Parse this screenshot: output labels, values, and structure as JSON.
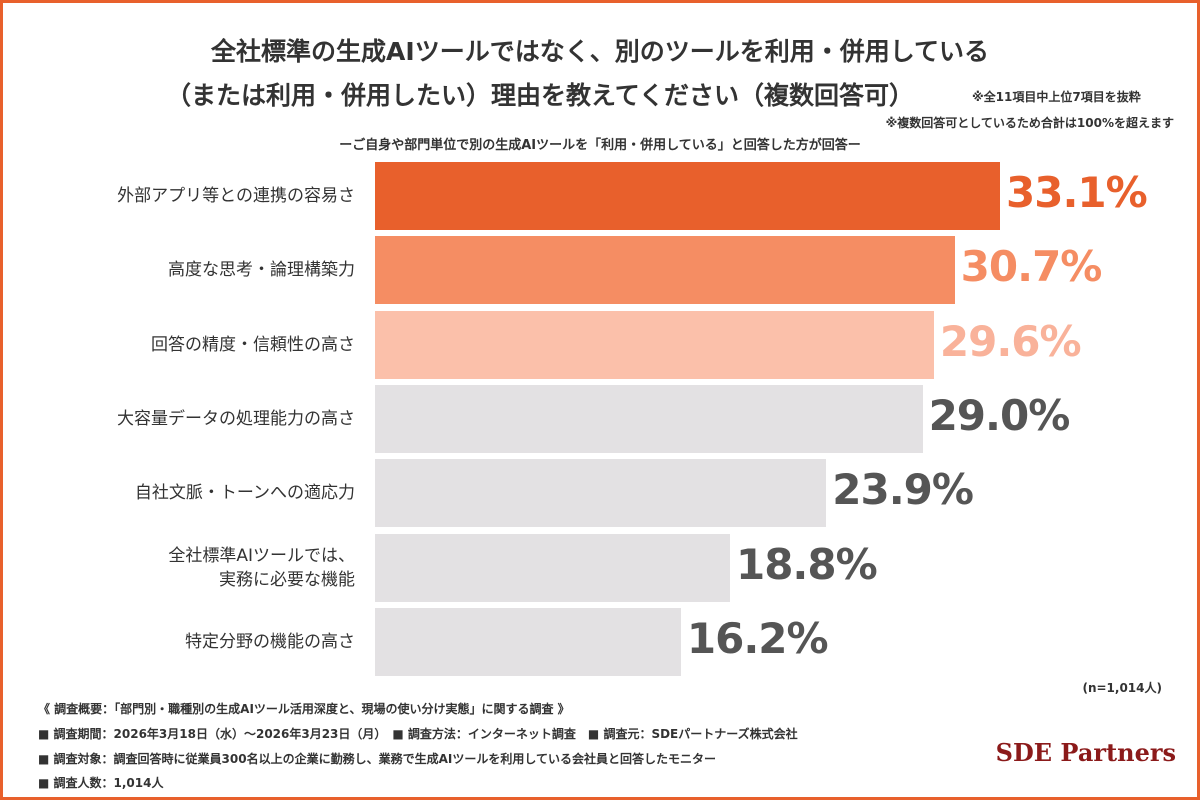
{
  "chart_data": {
    "type": "bar",
    "orientation": "horizontal",
    "title": [
      "全社標準の生成AIツールではなく、別のツールを利用・併用している",
      "（または利用・併用したい）理由を教えてください（複数回答可）"
    ],
    "notes": [
      "※全11項目中上位7項目を抜粋",
      "※複数回答可としているため合計は100%を超えます"
    ],
    "subtitle": "ーご自身や部門単位で別の生成AIツールを「利用・併用している」と回答した方が回答ー",
    "categories": [
      "外部アプリ等との連携の容易さ",
      "高度な思考・論理構築力",
      "回答の精度・信頼性の高さ",
      "大容量データの処理能力の高さ",
      "自社文脈・トーンへの適応力",
      "全社標準AIツールでは、\n実務に必要な機能",
      "特定分野の機能の高さ"
    ],
    "values": [
      33.1,
      30.7,
      29.6,
      29.0,
      23.9,
      18.8,
      16.2
    ],
    "value_labels": [
      "33.1%",
      "30.7%",
      "29.6%",
      "29.0%",
      "23.9%",
      "18.8%",
      "16.2%"
    ],
    "colors": [
      "#e8602c",
      "#f58d63",
      "#fbc0aa",
      "#e3e1e3",
      "#e3e1e3",
      "#e3e1e3",
      "#e3e1e3"
    ],
    "label_colors": [
      "#e8602c",
      "#f58d63",
      "#f9b29a",
      "#555555",
      "#555555",
      "#555555",
      "#555555"
    ],
    "sample_note": "(n=1,014人)"
  },
  "footer": {
    "lines": [
      "《 調査概要：「部門別・職種別の生成AIツール活用深度と、現場の使い分け実態」に関する調査 》",
      "■ 調査期間：2026年3月18日（水）～2026年3月23日（月）　■ 調査方法：インターネット調査　■ 調査元：SDEパートナーズ株式会社",
      "■ 調査対象：調査回答時に従業員300名以上の企業に勤務し、業務で生成AIツールを利用している会社員と回答したモニター",
      "■ 調査人数：1,014人"
    ],
    "logo": "SDE Partners"
  }
}
